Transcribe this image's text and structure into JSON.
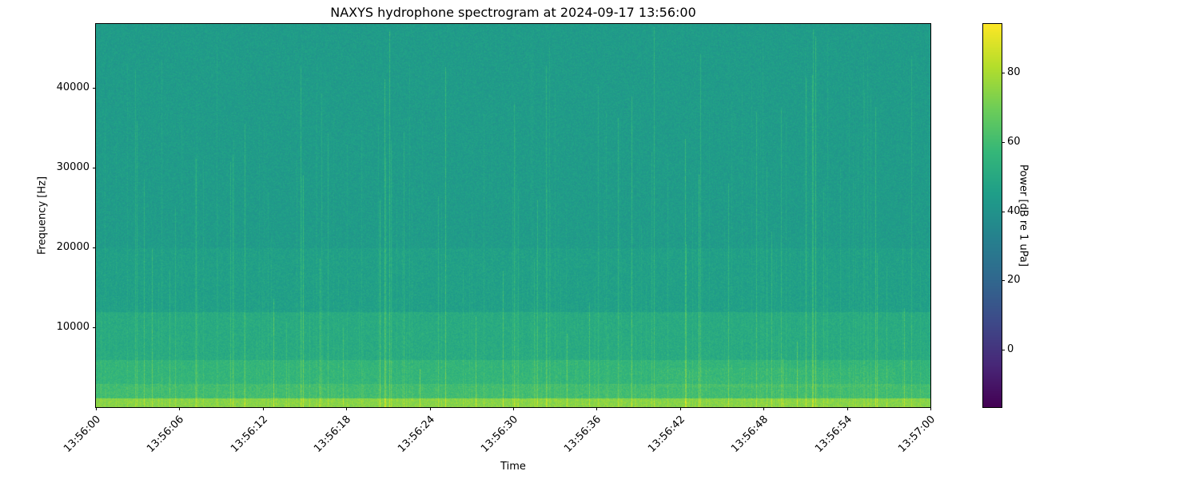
{
  "chart_data": {
    "type": "heatmap",
    "title": "NAXYS hydrophone spectrogram at 2024-09-17 13:56:00",
    "xlabel": "Time",
    "ylabel": "Frequency [Hz]",
    "colorbar_label": "Power [dB re 1 uPa]",
    "colormap": "viridis",
    "xlim": [
      "13:56:00",
      "13:57:00"
    ],
    "ylim": [
      0,
      48000
    ],
    "clim": [
      -16.5,
      94
    ],
    "x_ticks": [
      "13:56:00",
      "13:56:06",
      "13:56:12",
      "13:56:18",
      "13:56:24",
      "13:56:30",
      "13:56:36",
      "13:56:42",
      "13:56:48",
      "13:56:54",
      "13:57:00"
    ],
    "y_ticks": [
      10000,
      20000,
      30000,
      40000
    ],
    "colorbar_ticks": [
      0,
      20,
      40,
      60,
      80
    ],
    "grid": false
  }
}
